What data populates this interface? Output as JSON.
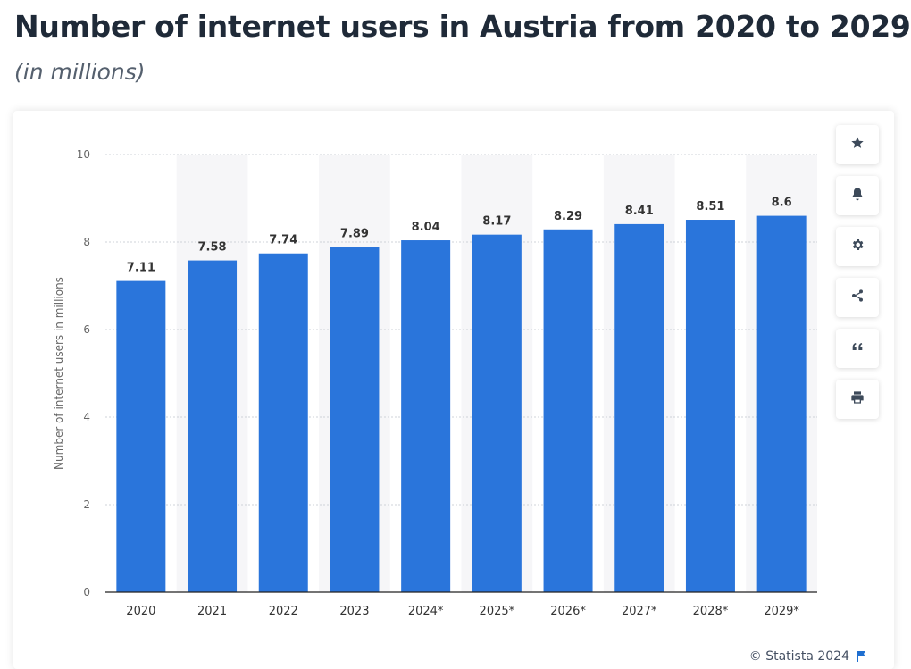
{
  "header": {
    "title": "Number of internet users in Austria from 2020 to 2029",
    "subtitle": "(in millions)"
  },
  "toolbar": {
    "buttons": [
      {
        "name": "favorite",
        "icon": "star-icon"
      },
      {
        "name": "notify",
        "icon": "bell-icon"
      },
      {
        "name": "settings",
        "icon": "gear-icon"
      },
      {
        "name": "share",
        "icon": "share-icon"
      },
      {
        "name": "cite",
        "icon": "quote-icon"
      },
      {
        "name": "print",
        "icon": "print-icon"
      }
    ]
  },
  "footer": {
    "credit": "© Statista 2024"
  },
  "colors": {
    "bar": "#2a75db",
    "band": "#f6f6f8",
    "grid": "#cfd3d8",
    "axis": "#222222"
  },
  "chart_data": {
    "type": "bar",
    "title": "Number of internet users in Austria from 2020 to 2029",
    "subtitle": "(in millions)",
    "xlabel": "",
    "ylabel": "Number of internet users in millions",
    "categories": [
      "2020",
      "2021",
      "2022",
      "2023",
      "2024*",
      "2025*",
      "2026*",
      "2027*",
      "2028*",
      "2029*"
    ],
    "values": [
      7.11,
      7.58,
      7.74,
      7.89,
      8.04,
      8.17,
      8.29,
      8.41,
      8.51,
      8.6
    ],
    "value_labels": [
      "7.11",
      "7.58",
      "7.74",
      "7.89",
      "8.04",
      "8.17",
      "8.29",
      "8.41",
      "8.51",
      "8.6"
    ],
    "ylim": [
      0,
      10
    ],
    "yticks": [
      0,
      2,
      4,
      6,
      8,
      10
    ],
    "grid": true
  }
}
